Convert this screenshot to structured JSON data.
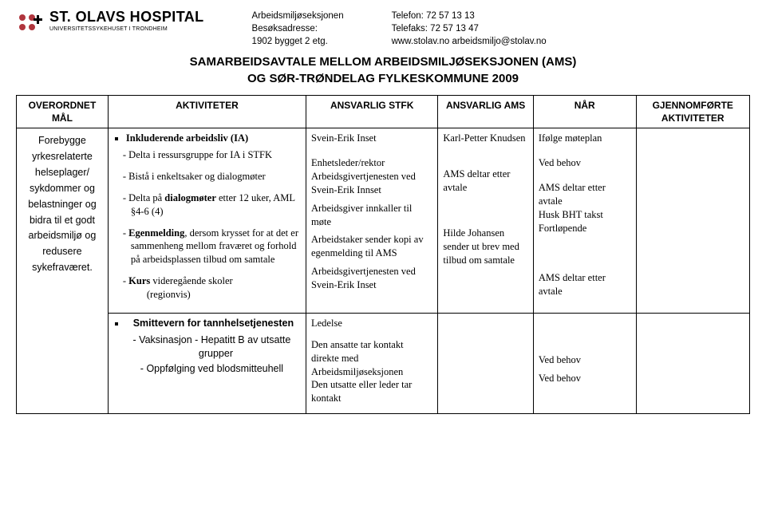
{
  "logo": {
    "name": "ST. OLAVS HOSPITAL",
    "tagline": "UNIVERSITETSSYKEHUSET I TRONDHEIM"
  },
  "address": {
    "left": {
      "l1": "Arbeidsmiljøseksjonen",
      "l2": "Besøksadresse:",
      "l3": "1902 bygget  2 etg."
    },
    "right": {
      "l1": "Telefon:  72 57 13 13",
      "l2": "Telefaks: 72 57 13 47",
      "l3": "www.stolav.no   arbeidsmiljo@stolav.no"
    }
  },
  "title": {
    "l1": "SAMARBEIDSAVTALE MELLOM ARBEIDSMILJØSEKSJONEN (AMS)",
    "l2": "OG SØR-TRØNDELAG FYLKESKOMMUNE 2009"
  },
  "columns": {
    "goal": "OVERORDNET MÅL",
    "act": "AKTIVITETER",
    "stfk": "ANSVARLIG STFK",
    "ams": "ANSVARLIG AMS",
    "naar": "NÅR",
    "done": "GJENNOMFØRTE AKTIVITETER"
  },
  "goal_lines": [
    "Forebygge",
    "yrkesrelaterte",
    "helseplager/",
    "sykdommer og",
    "belastninger og",
    "bidra til et godt",
    "arbeidsmiljø og",
    "redusere",
    "sykefraværet."
  ],
  "row1": {
    "act_head": "Inkluderende arbeidsliv (IA)",
    "act_subs": [
      "Delta i ressursgruppe for IA i STFK",
      "Bistå i enkeltsaker og dialogmøter",
      "Delta på <span class=\"b\">dialogmøter</span> etter 12 uker, AML §4-6 (4)",
      "<span class=\"b\">Egenmelding</span>, dersom krysset for at det er sammenheng mellom fraværet og forhold på arbeids­plassen tilbud om samtale",
      "<span class=\"b\">Kurs</span> videregående skoler <span class=\"sub2\">(regionvis)</span>"
    ],
    "stfk": {
      "a": "Svein-Erik Inset",
      "b": "Enhetsleder/rektor Arbeidsgivertjenesten ved Svein-Erik Innset",
      "c": "Arbeidsgiver innkaller til møte",
      "d": "Arbeidstaker sender kopi av egenmelding til AMS",
      "e": "Arbeidsgivertjenesten ved Svein-Erik Inset"
    },
    "ams": {
      "a": "Karl-Petter Knudsen",
      "b": "AMS deltar etter avtale",
      "c": "Hilde Johansen sender ut brev med tilbud om samtale"
    },
    "naar": {
      "a": "Ifølge møteplan",
      "b": "Ved behov",
      "c": "AMS deltar etter avtale",
      "d": "Husk BHT takst",
      "e": "Fortløpende",
      "f": "AMS deltar etter avtale"
    }
  },
  "row2": {
    "act_head": "Smittevern for tannhelsetjenesten",
    "act_subs": [
      "Vaksinasjon - Hepatitt B av utsatte grupper",
      "Oppfølging ved blodsmitteuhell"
    ],
    "stfk": {
      "a": "Ledelse",
      "b": "Den ansatte tar kontakt direkte med Arbeidsmiljøseksjonen",
      "c": "Den utsatte eller leder tar kontakt"
    },
    "naar": {
      "a": "Ved behov",
      "b": "Ved behov"
    }
  },
  "colors": {
    "accent": "#b0353d"
  }
}
